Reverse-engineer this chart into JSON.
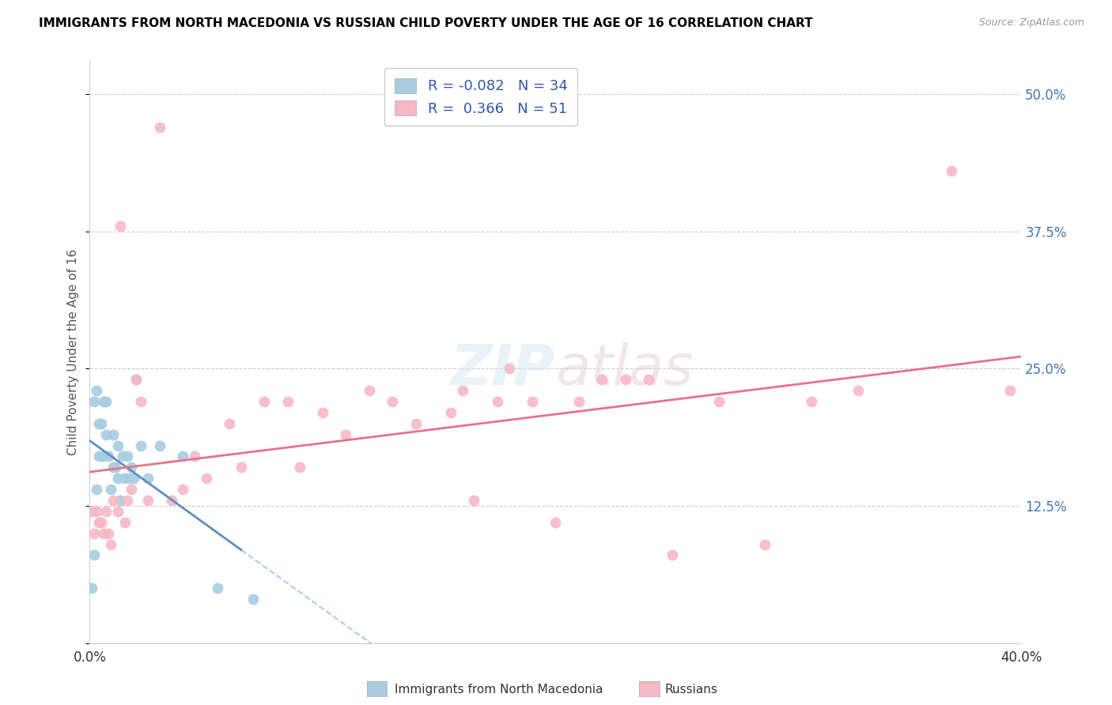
{
  "title": "IMMIGRANTS FROM NORTH MACEDONIA VS RUSSIAN CHILD POVERTY UNDER THE AGE OF 16 CORRELATION CHART",
  "source": "Source: ZipAtlas.com",
  "ylabel": "Child Poverty Under the Age of 16",
  "xlim": [
    0.0,
    0.4
  ],
  "ylim": [
    0.0,
    0.53
  ],
  "yticks": [
    0.0,
    0.125,
    0.25,
    0.375,
    0.5
  ],
  "ytick_labels": [
    "",
    "12.5%",
    "25.0%",
    "37.5%",
    "50.0%"
  ],
  "xticks": [
    0.0,
    0.4
  ],
  "xtick_labels": [
    "0.0%",
    "40.0%"
  ],
  "legend_r1": "R = -0.082",
  "legend_n1": "N = 34",
  "legend_r2": "R =  0.366",
  "legend_n2": "N = 51",
  "color_blue": "#a8cce0",
  "color_pink": "#f5b8c4",
  "line_blue": "#5b8ec4",
  "line_pink": "#e8728a",
  "line_dashed_color": "#aacce8",
  "blue_scatter_x": [
    0.001,
    0.002,
    0.002,
    0.003,
    0.003,
    0.004,
    0.004,
    0.005,
    0.005,
    0.006,
    0.006,
    0.007,
    0.007,
    0.008,
    0.009,
    0.01,
    0.01,
    0.011,
    0.012,
    0.012,
    0.013,
    0.014,
    0.015,
    0.016,
    0.017,
    0.018,
    0.019,
    0.02,
    0.022,
    0.025,
    0.03,
    0.04,
    0.055,
    0.07
  ],
  "blue_scatter_y": [
    0.05,
    0.08,
    0.22,
    0.14,
    0.23,
    0.17,
    0.2,
    0.17,
    0.2,
    0.17,
    0.22,
    0.19,
    0.22,
    0.17,
    0.14,
    0.16,
    0.19,
    0.16,
    0.15,
    0.18,
    0.13,
    0.17,
    0.15,
    0.17,
    0.15,
    0.16,
    0.15,
    0.24,
    0.18,
    0.15,
    0.18,
    0.17,
    0.05,
    0.04
  ],
  "pink_scatter_x": [
    0.001,
    0.002,
    0.003,
    0.004,
    0.005,
    0.006,
    0.007,
    0.008,
    0.009,
    0.01,
    0.012,
    0.013,
    0.015,
    0.016,
    0.018,
    0.02,
    0.022,
    0.025,
    0.03,
    0.035,
    0.04,
    0.045,
    0.05,
    0.06,
    0.065,
    0.075,
    0.085,
    0.09,
    0.1,
    0.11,
    0.12,
    0.13,
    0.14,
    0.155,
    0.16,
    0.165,
    0.175,
    0.18,
    0.19,
    0.2,
    0.21,
    0.22,
    0.23,
    0.24,
    0.25,
    0.27,
    0.29,
    0.31,
    0.33,
    0.37,
    0.395
  ],
  "pink_scatter_y": [
    0.12,
    0.1,
    0.12,
    0.11,
    0.11,
    0.1,
    0.12,
    0.1,
    0.09,
    0.13,
    0.12,
    0.38,
    0.11,
    0.13,
    0.14,
    0.24,
    0.22,
    0.13,
    0.47,
    0.13,
    0.14,
    0.17,
    0.15,
    0.2,
    0.16,
    0.22,
    0.22,
    0.16,
    0.21,
    0.19,
    0.23,
    0.22,
    0.2,
    0.21,
    0.23,
    0.13,
    0.22,
    0.25,
    0.22,
    0.11,
    0.22,
    0.24,
    0.24,
    0.24,
    0.08,
    0.22,
    0.09,
    0.22,
    0.23,
    0.43,
    0.23
  ]
}
